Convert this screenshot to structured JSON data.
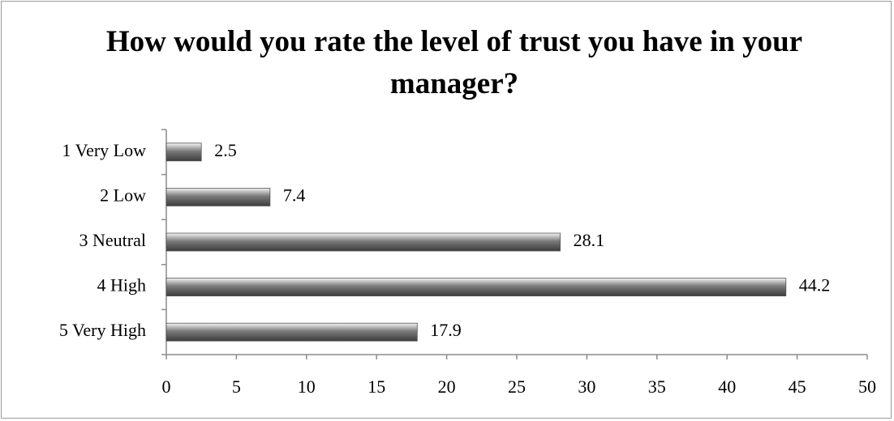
{
  "chart_data": {
    "type": "bar",
    "orientation": "horizontal",
    "title": "How would you rate the level of trust you have in your manager?",
    "categories": [
      "1 Very Low",
      "2 Low",
      "3 Neutral",
      "4 High",
      "5 Very High"
    ],
    "values": [
      2.5,
      7.4,
      28.1,
      44.2,
      17.9
    ],
    "color": "#7a7a7a",
    "xlim": [
      0,
      50
    ],
    "xticks": [
      0,
      5,
      10,
      15,
      20,
      25,
      30,
      35,
      40,
      45,
      50
    ],
    "grid": false
  }
}
